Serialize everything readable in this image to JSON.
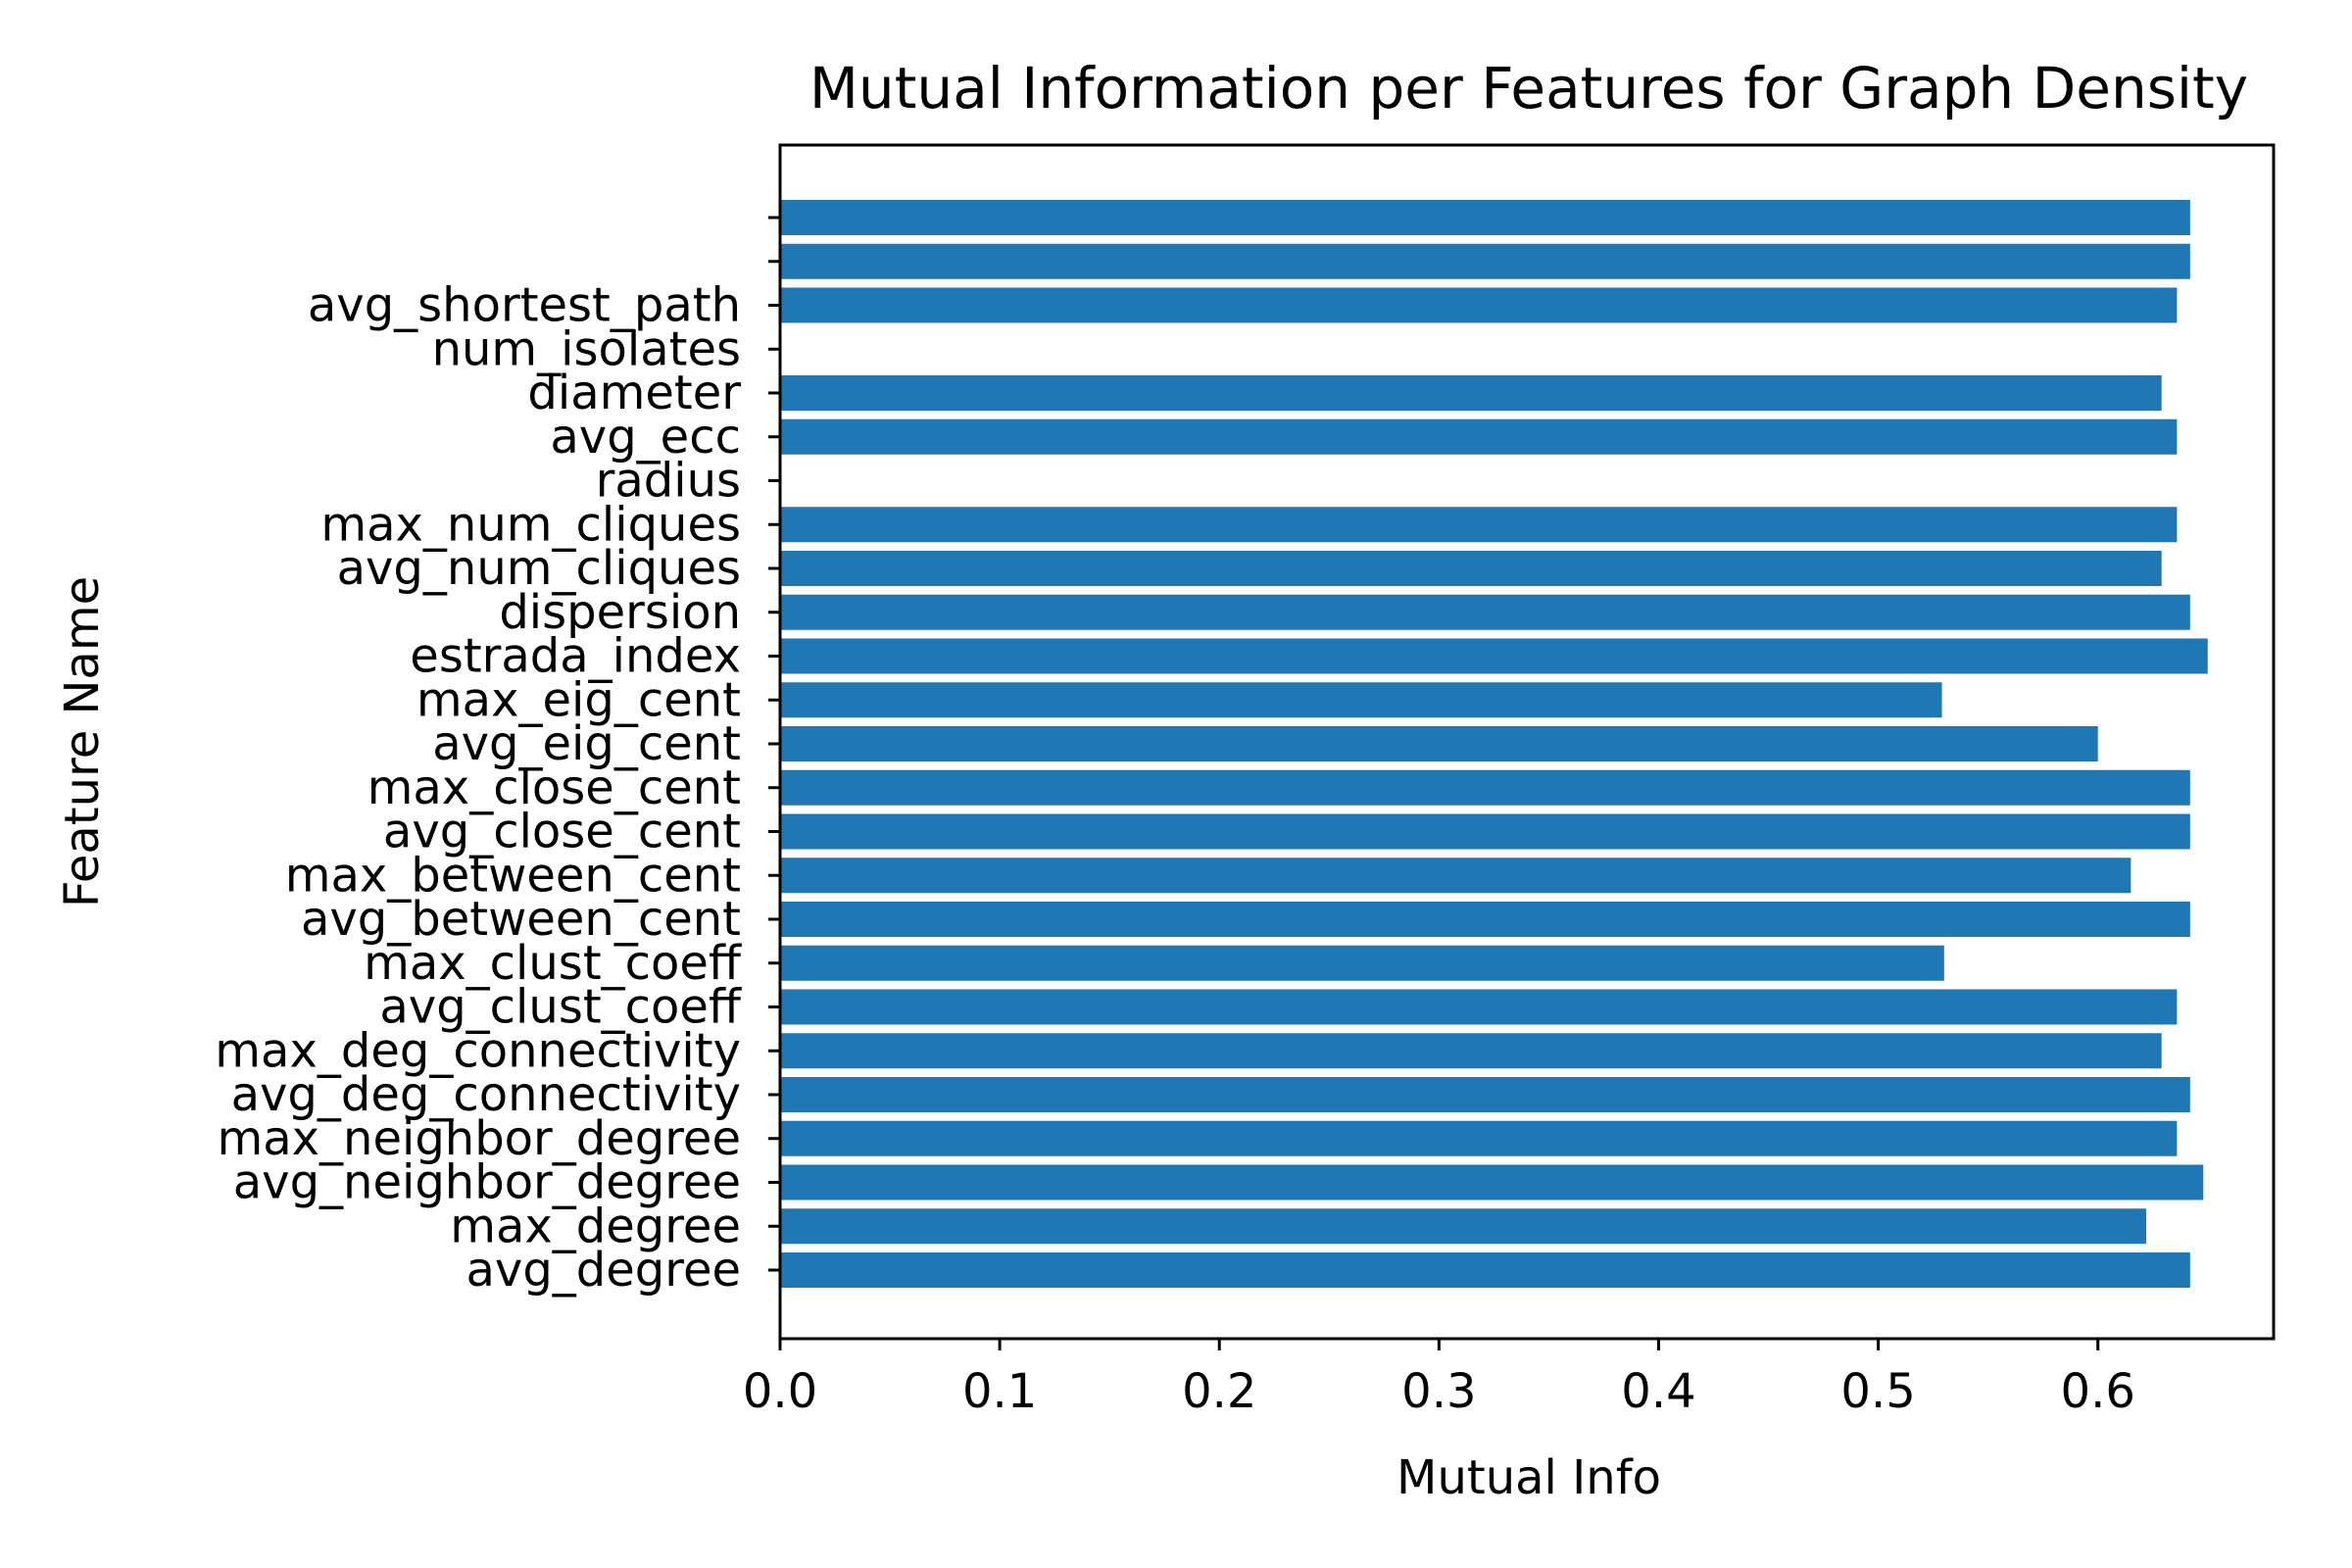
{
  "chart_data": {
    "type": "bar",
    "orientation": "horizontal",
    "title": "Mutual Information per Features for Graph Density",
    "xlabel": "Mutual Info",
    "ylabel": "Feature Name",
    "xlim": [
      0,
      0.68
    ],
    "xticks": [
      "0.0",
      "0.1",
      "0.2",
      "0.3",
      "0.4",
      "0.5",
      "0.6"
    ],
    "bar_color": "#1f77b4",
    "grid": false,
    "categories": [
      "avg_degree",
      "max_degree",
      "avg_neighbor_degree",
      "max_neighbor_degree",
      "avg_deg_connectivity",
      "max_deg_connectivity",
      "avg_clust_coeff",
      "max_clust_coeff",
      "avg_between_cent",
      "max_between_cent",
      "avg_close_cent",
      "max_close_cent",
      "avg_eig_cent",
      "max_eig_cent",
      "estrada_index",
      "dispersion",
      "avg_num_cliques",
      "max_num_cliques",
      "radius",
      "avg_ecc",
      "diameter",
      "num_isolates",
      "avg_shortest_path",
      "",
      ""
    ],
    "values": [
      0.642,
      0.622,
      0.648,
      0.636,
      0.642,
      0.629,
      0.636,
      0.53,
      0.642,
      0.615,
      0.642,
      0.642,
      0.6,
      0.529,
      0.65,
      0.642,
      0.629,
      0.636,
      0.0,
      0.636,
      0.629,
      0.0,
      0.636,
      0.642,
      0.642
    ]
  }
}
